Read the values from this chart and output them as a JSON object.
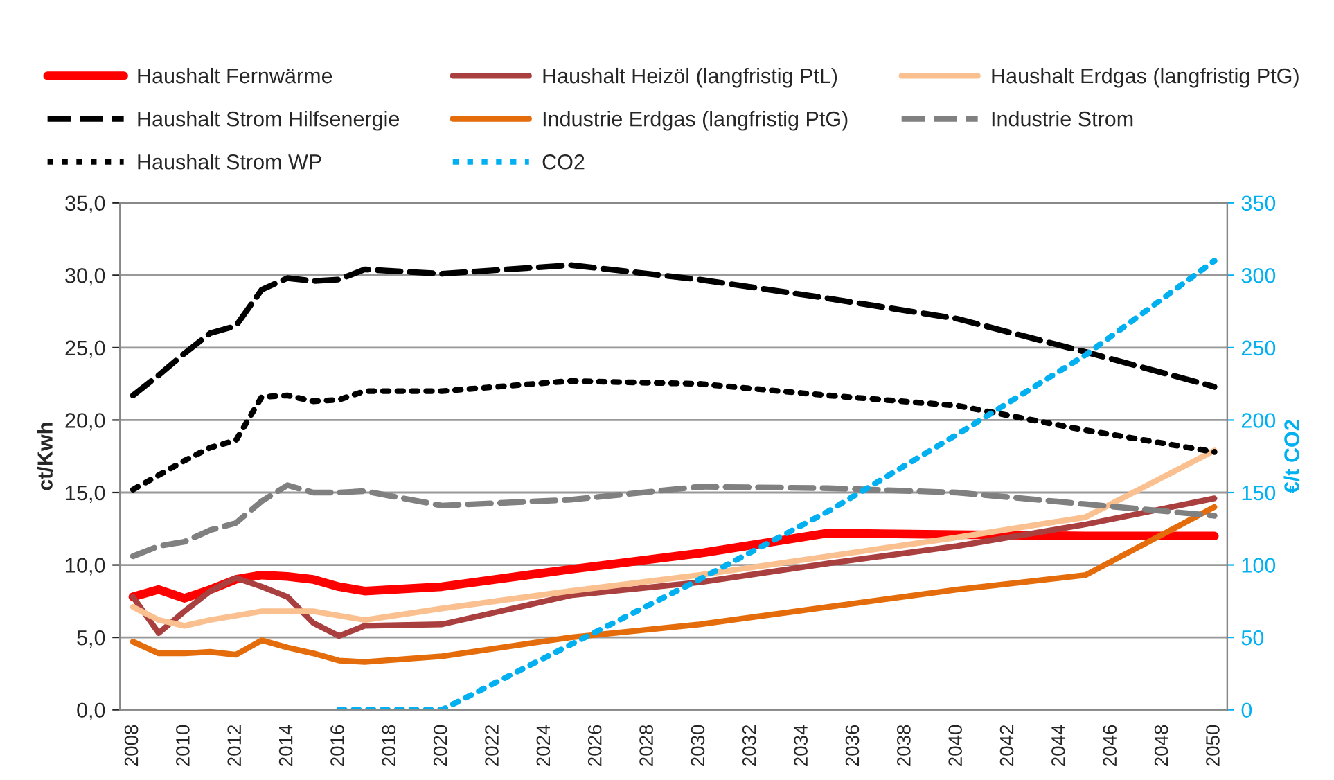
{
  "chart_data": {
    "type": "line",
    "x": [
      2008,
      2009,
      2010,
      2011,
      2012,
      2013,
      2014,
      2015,
      2016,
      2017,
      2020,
      2025,
      2030,
      2035,
      2040,
      2045,
      2050
    ],
    "series": [
      {
        "name": "Haushalt Fernwärme",
        "color": "#ff0000",
        "line_style": "solid",
        "values": [
          7.8,
          8.3,
          7.7,
          8.3,
          9.0,
          9.3,
          9.2,
          9.0,
          8.5,
          8.2,
          8.5,
          9.7,
          10.8,
          12.2,
          12.1,
          12.0,
          12.0
        ]
      },
      {
        "name": "Haushalt Heizöl (langfristig PtL)",
        "color": "#a9403f",
        "line_style": "solid",
        "values": [
          7.8,
          5.3,
          6.8,
          8.2,
          9.1,
          8.5,
          7.8,
          6.0,
          5.1,
          5.8,
          5.9,
          7.9,
          8.8,
          10.1,
          11.3,
          12.8,
          14.6
        ]
      },
      {
        "name": "Haushalt Erdgas (langfristig PtG)",
        "color": "#fac090",
        "line_style": "solid",
        "values": [
          7.1,
          6.2,
          5.8,
          6.2,
          6.5,
          6.8,
          6.8,
          6.8,
          6.5,
          6.2,
          7.0,
          8.2,
          9.3,
          10.6,
          11.9,
          13.3,
          17.9
        ]
      },
      {
        "name": "Haushalt Strom Hilfsenergie",
        "color": "#000000",
        "line_style": "dashed",
        "values": [
          21.7,
          23.1,
          24.6,
          26.0,
          26.5,
          29.0,
          29.8,
          29.6,
          29.7,
          30.4,
          30.1,
          30.7,
          29.7,
          28.4,
          27.0,
          24.7,
          22.3
        ]
      },
      {
        "name": "Industrie Erdgas (langfristig PtG)",
        "color": "#e46c0a",
        "line_style": "solid",
        "values": [
          4.7,
          3.9,
          3.9,
          4.0,
          3.8,
          4.8,
          4.3,
          3.9,
          3.4,
          3.3,
          3.7,
          5.0,
          5.9,
          7.1,
          8.3,
          9.3,
          14.0
        ]
      },
      {
        "name": "Industrie Strom",
        "color": "#808080",
        "line_style": "dashed",
        "values": [
          10.6,
          11.3,
          11.6,
          12.4,
          12.9,
          14.4,
          15.5,
          15.0,
          15.0,
          15.1,
          14.1,
          14.5,
          15.4,
          15.3,
          15.0,
          14.2,
          13.4
        ]
      },
      {
        "name": "Haushalt Strom WP",
        "color": "#000000",
        "line_style": "dotted",
        "values": [
          15.2,
          16.2,
          17.2,
          18.1,
          18.6,
          21.6,
          21.7,
          21.3,
          21.4,
          22.0,
          22.0,
          22.7,
          22.5,
          21.7,
          21.0,
          19.3,
          17.8
        ]
      },
      {
        "name": "CO2",
        "color": "#00b0f0",
        "line_style": "dotted",
        "axis": "y2",
        "x": [
          2016,
          2017,
          2018,
          2019,
          2020,
          2025,
          2030,
          2035,
          2040,
          2045,
          2050
        ],
        "values": [
          0,
          0,
          0,
          0,
          0,
          45,
          90,
          137,
          190,
          245,
          310
        ]
      }
    ],
    "ylabel": "ct/Kwh",
    "y2label": "€/t CO2",
    "xlim": [
      2007.5,
      2050.5
    ],
    "xticks": [
      2008,
      2010,
      2012,
      2014,
      2016,
      2018,
      2020,
      2022,
      2024,
      2026,
      2028,
      2030,
      2032,
      2034,
      2036,
      2038,
      2040,
      2042,
      2044,
      2046,
      2048,
      2050
    ],
    "ylim": [
      0,
      35
    ],
    "yticks": [
      {
        "value": 0,
        "label": "0,0"
      },
      {
        "value": 5,
        "label": "5,0"
      },
      {
        "value": 10,
        "label": "10,0"
      },
      {
        "value": 15,
        "label": "15,0"
      },
      {
        "value": 20,
        "label": "20,0"
      },
      {
        "value": 25,
        "label": "25,0"
      },
      {
        "value": 30,
        "label": "30,0"
      },
      {
        "value": 35,
        "label": "35,0"
      }
    ],
    "y2lim": [
      0,
      350
    ],
    "y2ticks": [
      0,
      50,
      100,
      150,
      200,
      250,
      300,
      350
    ],
    "grid": "y",
    "legend": "top"
  }
}
